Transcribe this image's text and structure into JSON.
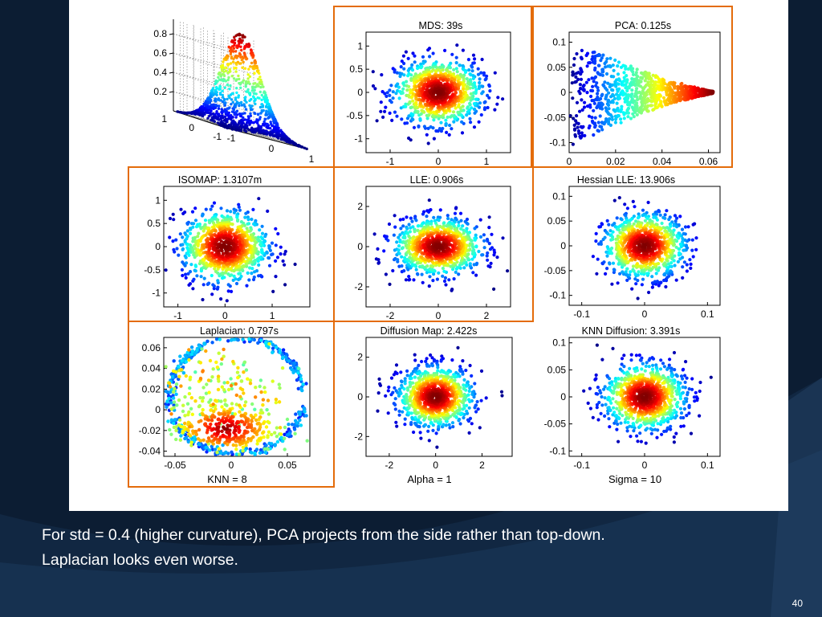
{
  "slide": {
    "caption_line_1": "For std = 0.4 (higher curvature), PCA projects from the side rather than top-down.",
    "caption_line_2": "Laplacian looks even worse.",
    "page_number": "40",
    "colors": {
      "background": "#0c1d33",
      "panel": "#ffffff",
      "highlight_border": "#e46c0a"
    }
  },
  "chart_data": [
    {
      "id": "surface",
      "type": "surface3d",
      "title": "",
      "z_ticks": [
        "0.8",
        "0.6",
        "0.4",
        "0.2"
      ],
      "x_ticks": [
        "1",
        "0",
        "-1"
      ],
      "y_ticks": [
        "-1",
        "0",
        "1"
      ],
      "description": "gaussian bump z = exp(-(x^2+y^2)/(2*0.4^2)) sampled by scattered points"
    },
    {
      "id": "mds",
      "type": "scatter",
      "title": "MDS: 39s",
      "xlabel": "",
      "xlim": [
        -1.5,
        1.5
      ],
      "ylim": [
        -1.3,
        1.3
      ],
      "x_ticks": [
        -1,
        0,
        1
      ],
      "y_ticks": [
        1,
        0.5,
        0,
        -0.5,
        -1
      ],
      "x_tick_labels": [
        "-1",
        "0",
        "1"
      ],
      "y_tick_labels": [
        "1",
        "0.5",
        "0",
        "-0.5",
        "-1"
      ],
      "cluster": {
        "cx": 0,
        "cy": 0,
        "sx": 0.45,
        "sy": 0.35
      },
      "highlighted": true
    },
    {
      "id": "pca",
      "type": "scatter",
      "title": "PCA: 0.125s",
      "xlabel": "",
      "xlim": [
        0,
        0.065
      ],
      "ylim": [
        -0.12,
        0.12
      ],
      "x_ticks": [
        0,
        0.02,
        0.04,
        0.06
      ],
      "y_ticks": [
        0.1,
        0.05,
        0,
        -0.05,
        -0.1
      ],
      "x_tick_labels": [
        "0",
        "0.02",
        "0.04",
        "0.06"
      ],
      "y_tick_labels": [
        "0.1",
        "0.05",
        "0",
        "-0.05",
        "-0.1"
      ],
      "shape": "side-projection wedge",
      "highlighted": true
    },
    {
      "id": "isomap",
      "type": "scatter",
      "title": "ISOMAP: 1.3107m",
      "xlabel": "",
      "xlim": [
        -1.3,
        1.8
      ],
      "ylim": [
        -1.3,
        1.3
      ],
      "x_ticks": [
        -1,
        0,
        1
      ],
      "y_ticks": [
        1,
        0.5,
        0,
        -0.5,
        -1
      ],
      "x_tick_labels": [
        "-1",
        "0",
        "1"
      ],
      "y_tick_labels": [
        "1",
        "0.5",
        "0",
        "-0.5",
        "-1"
      ],
      "cluster": {
        "cx": 0,
        "cy": 0,
        "sx": 0.45,
        "sy": 0.38
      },
      "highlighted": true
    },
    {
      "id": "lle",
      "type": "scatter",
      "title": "LLE: 0.906s",
      "xlabel": "",
      "xlim": [
        -3,
        3
      ],
      "ylim": [
        -3,
        3
      ],
      "x_ticks": [
        -2,
        0,
        2
      ],
      "y_ticks": [
        2,
        0,
        -2
      ],
      "x_tick_labels": [
        "-2",
        "0",
        "2"
      ],
      "y_tick_labels": [
        "2",
        "0",
        "-2"
      ],
      "cluster": {
        "cx": 0,
        "cy": 0,
        "sx": 0.9,
        "sy": 0.7
      },
      "highlighted": true
    },
    {
      "id": "hessian",
      "type": "scatter",
      "title": "Hessian LLE: 13.906s",
      "xlabel": "",
      "xlim": [
        -0.12,
        0.12
      ],
      "ylim": [
        -0.12,
        0.12
      ],
      "x_ticks": [
        -0.1,
        0,
        0.1
      ],
      "y_ticks": [
        0.1,
        0.05,
        0,
        -0.05,
        -0.1
      ],
      "x_tick_labels": [
        "-0.1",
        "0",
        "0.1"
      ],
      "y_tick_labels": [
        "0.1",
        "0.05",
        "0",
        "-0.05",
        "-0.1"
      ],
      "cluster": {
        "cx": 0,
        "cy": 0,
        "sx": 0.032,
        "sy": 0.032
      },
      "highlighted": false
    },
    {
      "id": "laplacian",
      "type": "scatter",
      "title": "Laplacian: 0.797s",
      "xlabel": "KNN = 8",
      "xlim": [
        -0.06,
        0.07
      ],
      "ylim": [
        -0.045,
        0.07
      ],
      "x_ticks": [
        -0.05,
        0,
        0.05
      ],
      "y_ticks": [
        0.06,
        0.04,
        0.02,
        0,
        -0.02,
        -0.04
      ],
      "x_tick_labels": [
        "-0.05",
        "0",
        "0.05"
      ],
      "y_tick_labels": [
        "0.06",
        "0.04",
        "0.02",
        "0",
        "-0.02",
        "-0.04"
      ],
      "shape": "curved shell with dense bottom core",
      "highlighted": true
    },
    {
      "id": "diffusion",
      "type": "scatter",
      "title": "Diffusion Map: 2.422s",
      "xlabel": "Alpha = 1",
      "xlim": [
        -3,
        3.3
      ],
      "ylim": [
        -3,
        3
      ],
      "x_ticks": [
        -2,
        0,
        2
      ],
      "y_ticks": [
        2,
        0,
        -2
      ],
      "x_tick_labels": [
        "-2",
        "0",
        "2"
      ],
      "y_tick_labels": [
        "2",
        "0",
        "-2"
      ],
      "cluster": {
        "cx": 0,
        "cy": 0,
        "sx": 0.8,
        "sy": 0.75
      },
      "highlighted": false
    },
    {
      "id": "knn",
      "type": "scatter",
      "title": "KNN Diffusion: 3.391s",
      "xlabel": "Sigma = 10",
      "xlim": [
        -0.12,
        0.12
      ],
      "ylim": [
        -0.11,
        0.11
      ],
      "x_ticks": [
        -0.1,
        0,
        0.1
      ],
      "y_ticks": [
        0.1,
        0.05,
        0,
        -0.05,
        -0.1
      ],
      "x_tick_labels": [
        "-0.1",
        "0",
        "0.1"
      ],
      "y_tick_labels": [
        "0.1",
        "0.05",
        "0",
        "-0.05",
        "-0.1"
      ],
      "cluster": {
        "cx": 0,
        "cy": 0,
        "sx": 0.032,
        "sy": 0.03
      },
      "highlighted": false
    }
  ]
}
